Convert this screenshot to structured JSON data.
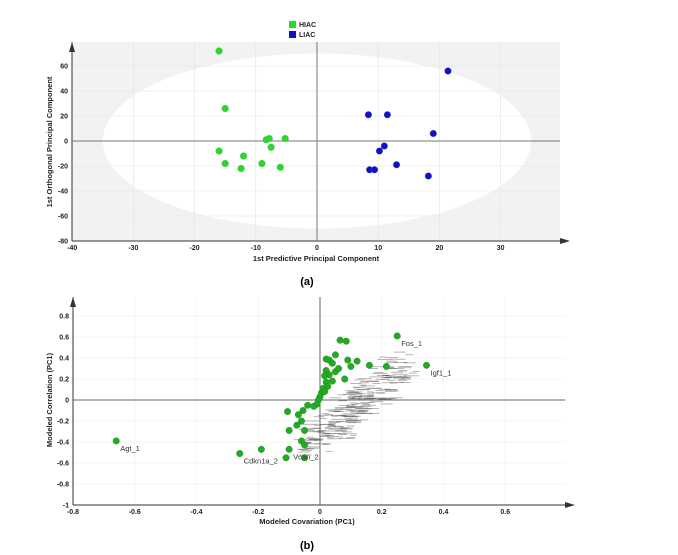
{
  "chart_data": [
    {
      "type": "scatter",
      "caption": "(a)",
      "xlabel": "1st Predictive Principal Component",
      "ylabel": "1st Orthogonal Principal Component",
      "xlim": [
        -40,
        38
      ],
      "ylim": [
        -80,
        78
      ],
      "xticks": [
        -40,
        -30,
        -20,
        -10,
        0,
        10,
        20,
        30
      ],
      "yticks": [
        -80,
        -60,
        -40,
        -20,
        0,
        20,
        40,
        60
      ],
      "grid": true,
      "legend": "top-center",
      "ellipse": {
        "rx": 35,
        "ry": 70
      },
      "series": [
        {
          "name": "HIAC",
          "color": "#22dd22",
          "points": [
            [
              -16,
              72
            ],
            [
              -15,
              26
            ],
            [
              -8.3,
              1
            ],
            [
              -7.8,
              2
            ],
            [
              -5.2,
              2
            ],
            [
              -7.5,
              -5
            ],
            [
              -16,
              -8
            ],
            [
              -12,
              -12
            ],
            [
              -15,
              -18
            ],
            [
              -12.4,
              -22
            ],
            [
              -9,
              -18
            ],
            [
              -6,
              -21
            ]
          ]
        },
        {
          "name": "LIAC",
          "color": "#1010cc",
          "points": [
            [
              21.4,
              56
            ],
            [
              8.4,
              21
            ],
            [
              11.5,
              21
            ],
            [
              19,
              6
            ],
            [
              11,
              -4
            ],
            [
              10.2,
              -8
            ],
            [
              8.6,
              -23
            ],
            [
              9.4,
              -23
            ],
            [
              13,
              -19
            ],
            [
              18.2,
              -28
            ]
          ]
        }
      ]
    },
    {
      "type": "scatter",
      "caption": "(b)",
      "xlabel": "Modeled Covariation (PC1)",
      "ylabel": "Modeled Correlation (PC1)",
      "xlim": [
        -0.8,
        0.8
      ],
      "ylim": [
        -1,
        0.9
      ],
      "xticks": [
        -0.8,
        -0.6,
        -0.4,
        -0.2,
        0,
        0.2,
        0.4,
        0.6
      ],
      "yticks": [
        -1,
        -0.8,
        -0.6,
        -0.4,
        -0.2,
        0,
        0.2,
        0.4,
        0.6,
        0.8
      ],
      "xtick_labels": [
        "-0.8",
        "-0.6",
        "-0.4",
        "-0.2",
        "0",
        "0.2",
        "0.4",
        "0.6"
      ],
      "ytick_labels": [
        "-1",
        "-0.8",
        "-0.6",
        "-0.4",
        "-0.2",
        "0",
        "0.2",
        "0.4",
        "0.6",
        "0.8"
      ],
      "grid": true,
      "color": "#22aa22",
      "points": [
        [
          -0.66,
          -0.39
        ],
        [
          -0.26,
          -0.51
        ],
        [
          -0.19,
          -0.47
        ],
        [
          -0.1,
          -0.47
        ],
        [
          -0.11,
          -0.55
        ],
        [
          -0.05,
          -0.55
        ],
        [
          0.25,
          0.61
        ],
        [
          0.345,
          0.33
        ],
        [
          0.065,
          0.57
        ],
        [
          0.085,
          0.56
        ],
        [
          0.05,
          0.43
        ],
        [
          0.02,
          0.39
        ],
        [
          0.03,
          0.38
        ],
        [
          0.09,
          0.38
        ],
        [
          0.12,
          0.37
        ],
        [
          0.16,
          0.33
        ],
        [
          0.215,
          0.32
        ],
        [
          0.04,
          0.35
        ],
        [
          0.02,
          0.28
        ],
        [
          0.03,
          0.24
        ],
        [
          0.015,
          0.23
        ],
        [
          0.02,
          0.17
        ],
        [
          0.025,
          0.13
        ],
        [
          0.01,
          0.11
        ],
        [
          0.005,
          0.07
        ],
        [
          0.015,
          0.08
        ],
        [
          0.0,
          0.03
        ],
        [
          -0.005,
          0.0
        ],
        [
          -0.01,
          -0.04
        ],
        [
          -0.04,
          -0.05
        ],
        [
          -0.055,
          -0.1
        ],
        [
          -0.105,
          -0.11
        ],
        [
          -0.07,
          -0.14
        ],
        [
          -0.06,
          -0.2
        ],
        [
          -0.075,
          -0.24
        ],
        [
          -0.1,
          -0.29
        ],
        [
          -0.05,
          -0.29
        ],
        [
          -0.06,
          -0.39
        ],
        [
          -0.05,
          -0.43
        ],
        [
          -0.02,
          -0.06
        ],
        [
          0.05,
          0.27
        ],
        [
          0.06,
          0.3
        ],
        [
          0.1,
          0.32
        ],
        [
          0.08,
          0.2
        ],
        [
          0.04,
          0.18
        ]
      ],
      "labels": [
        {
          "text": "Agt_1",
          "x": -0.66,
          "y": -0.39
        },
        {
          "text": "Cdkn1a_2",
          "x": -0.26,
          "y": -0.51
        },
        {
          "text": "Vcan_2",
          "x": -0.1,
          "y": -0.47
        },
        {
          "text": "Fos_1",
          "x": 0.25,
          "y": 0.61
        },
        {
          "text": "Igf1_1",
          "x": 0.345,
          "y": 0.33
        }
      ]
    }
  ]
}
